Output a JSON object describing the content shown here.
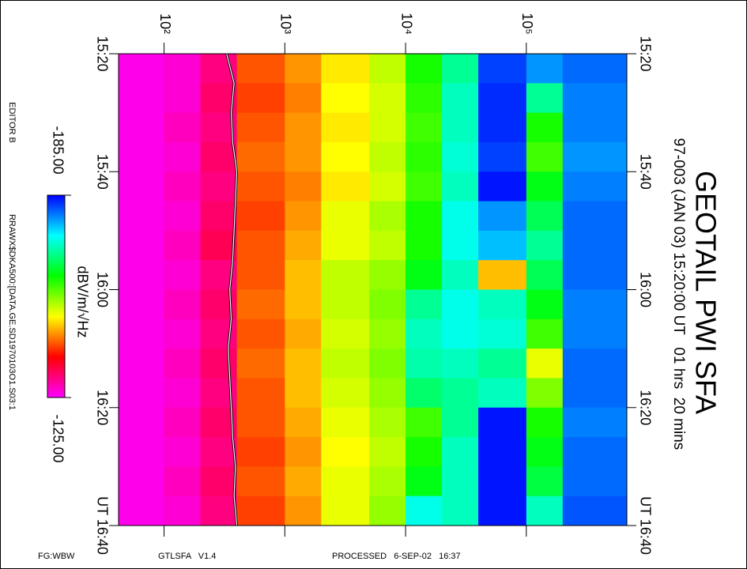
{
  "chart_data": {
    "type": "spectrogram",
    "title": "GEOTAIL PWI SFA",
    "subtitle": "97-003 (JAN 03) 15:20:00 UT   01 hrs  20 mins",
    "xscale": "log",
    "xlim": [
      42,
      680000
    ],
    "xticks": [
      {
        "value": 100,
        "label": "10²"
      },
      {
        "value": 1000,
        "label": "10³"
      },
      {
        "value": 10000,
        "label": "10⁴"
      },
      {
        "value": 100000,
        "label": "10⁵"
      }
    ],
    "ylim": [
      "15:20",
      "16:40"
    ],
    "yticks": [
      "15:20",
      "15:40",
      "16:00",
      "16:20",
      {
        "value": "16:40",
        "label": "UT 16:40"
      }
    ],
    "freq_edges": [
      42,
      100,
      200,
      400,
      1000,
      2000,
      5000,
      10000,
      20000,
      40000,
      100000,
      200000,
      680000
    ],
    "time_edges": [
      "15:20",
      "15:25",
      "15:30",
      "15:35",
      "15:40",
      "15:45",
      "15:50",
      "15:55",
      "16:00",
      "16:05",
      "16:10",
      "16:15",
      "16:20",
      "16:25",
      "16:30",
      "16:35",
      "16:40"
    ],
    "z": [
      [
        -126,
        -127,
        -131,
        -141,
        -144,
        -148,
        -152,
        -160,
        -168,
        -182,
        -178,
        -180
      ],
      [
        -126,
        -127,
        -132,
        -140,
        -143,
        -149,
        -151,
        -159,
        -170,
        -183,
        -168,
        -179
      ],
      [
        -126,
        -128,
        -131,
        -141,
        -144,
        -148,
        -151,
        -158,
        -170,
        -183,
        -160,
        -179
      ],
      [
        -126,
        -127,
        -132,
        -142,
        -144,
        -149,
        -152,
        -159,
        -171,
        -182,
        -158,
        -178
      ],
      [
        -126,
        -128,
        -131,
        -141,
        -143,
        -148,
        -151,
        -158,
        -170,
        -184,
        -162,
        -179
      ],
      [
        -126,
        -127,
        -132,
        -140,
        -144,
        -150,
        -153,
        -160,
        -172,
        -178,
        -165,
        -180
      ],
      [
        -126,
        -128,
        -133,
        -141,
        -145,
        -150,
        -152,
        -160,
        -172,
        -176,
        -168,
        -180
      ],
      [
        -126,
        -127,
        -131,
        -141,
        -146,
        -152,
        -154,
        -162,
        -170,
        -146,
        -165,
        -180
      ],
      [
        -126,
        -128,
        -132,
        -142,
        -146,
        -152,
        -155,
        -168,
        -172,
        -170,
        -162,
        -179
      ],
      [
        -126,
        -127,
        -131,
        -141,
        -145,
        -151,
        -154,
        -170,
        -172,
        -171,
        -158,
        -179
      ],
      [
        -126,
        -128,
        -132,
        -142,
        -146,
        -152,
        -155,
        -169,
        -170,
        -168,
        -150,
        -180
      ],
      [
        -126,
        -127,
        -131,
        -141,
        -146,
        -151,
        -154,
        -166,
        -168,
        -170,
        -155,
        -180
      ],
      [
        -126,
        -128,
        -132,
        -141,
        -145,
        -150,
        -153,
        -158,
        -168,
        -184,
        -160,
        -179
      ],
      [
        -126,
        -127,
        -131,
        -140,
        -144,
        -149,
        -152,
        -160,
        -170,
        -184,
        -162,
        -180
      ],
      [
        -126,
        -128,
        -132,
        -141,
        -145,
        -150,
        -153,
        -162,
        -170,
        -184,
        -164,
        -180
      ],
      [
        -126,
        -127,
        -131,
        -140,
        -144,
        -150,
        -154,
        -172,
        -170,
        -184,
        -170,
        -181
      ]
    ],
    "zlim": [
      -185,
      -125
    ],
    "colormap": [
      "#0000ff",
      "#00ffff",
      "#00ff00",
      "#ffff00",
      "#ff0000",
      "#ff00ff"
    ],
    "colorbar": {
      "label": "dBV/m/√Hz",
      "ticks": [
        {
          "value": -185,
          "label": "-185.00"
        },
        {
          "value": -125,
          "label": "-125.00"
        }
      ]
    },
    "trace": {
      "color": "#ffffff",
      "times": [
        "15:20",
        "15:25",
        "15:30",
        "15:35",
        "15:40",
        "15:45",
        "15:50",
        "15:55",
        "16:00",
        "16:05",
        "16:10",
        "16:15",
        "16:20",
        "16:25",
        "16:30",
        "16:35",
        "16:40"
      ],
      "values": [
        330,
        380,
        360,
        370,
        400,
        390,
        380,
        370,
        350,
        360,
        340,
        350,
        360,
        370,
        390,
        380,
        400
      ]
    },
    "side_text": [
      "EDITOR B",
      "RRAWX$DKA500:[DATA.GE.SD1970103O1.S03:1"
    ],
    "footer": [
      "FG:WBW",
      "GTLSFA   V1.4",
      "PROCESSED   6-SEP-02   16:37"
    ]
  }
}
